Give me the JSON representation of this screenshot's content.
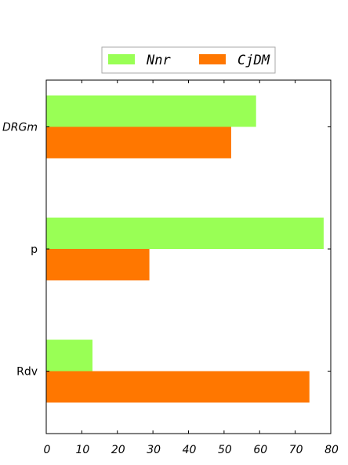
{
  "chart_data": {
    "type": "bar",
    "orientation": "horizontal",
    "categories": [
      "DRGm",
      "p",
      "Rdv"
    ],
    "series": [
      {
        "name": "Nnr",
        "values": [
          59,
          78,
          13
        ],
        "color": "#99ff55"
      },
      {
        "name": "CjDM",
        "values": [
          52,
          29,
          74
        ],
        "color": "#ff7700"
      }
    ],
    "xlim": [
      0,
      80
    ],
    "xticks": [
      0,
      10,
      20,
      30,
      40,
      50,
      60,
      70,
      80
    ],
    "title": "",
    "xlabel": "",
    "ylabel": "",
    "grid": false,
    "legend_position": "top-center"
  }
}
